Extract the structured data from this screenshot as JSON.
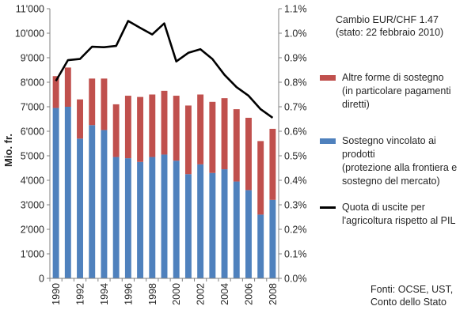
{
  "exchange_rate": {
    "line1": "Cambio    EUR/CHF    1.47",
    "line2": "(stato: 22 febbraio 2010)"
  },
  "legend": {
    "red": "Altre forme di sostegno\n(in particolare pagamenti\ndiretti)",
    "blue": "Sostegno vincolato ai\nprodotti\n(protezione alla frontiera e\nsostegno del mercato)",
    "line": "Quota di uscite per\nl'agricoltura rispetto al PIL"
  },
  "sources": "Fonti: OCSE, UST,\nConto dello Stato",
  "chart_data": {
    "type": "bar",
    "stacked": true,
    "ylabel": "Mio. fr.",
    "ylim": [
      0,
      11000
    ],
    "y_ticks": [
      "0",
      "1'000",
      "2'000",
      "3'000",
      "4'000",
      "5'000",
      "6'000",
      "7'000",
      "8'000",
      "9'000",
      "10'000",
      "11'000"
    ],
    "y2lim": [
      0,
      1.1
    ],
    "y2_ticks": [
      "0.0%",
      "0.1%",
      "0.2%",
      "0.3%",
      "0.4%",
      "0.5%",
      "0.6%",
      "0.7%",
      "0.8%",
      "0.9%",
      "1.0%",
      "1.1%"
    ],
    "categories": [
      "1990",
      "1991",
      "1992",
      "1993",
      "1994",
      "1995",
      "1996",
      "1997",
      "1998",
      "1999",
      "2000",
      "2001",
      "2002",
      "2003",
      "2004",
      "2005",
      "2006",
      "2007",
      "2008"
    ],
    "x_tick_labels": [
      "1990",
      "1992",
      "1994",
      "1996",
      "1998",
      "2000",
      "2002",
      "2004",
      "2006",
      "2008"
    ],
    "series": [
      {
        "color": "#4f81bd",
        "values": [
          6950,
          7000,
          5700,
          6250,
          6050,
          4950,
          4900,
          4750,
          4950,
          5050,
          4800,
          4250,
          4650,
          4300,
          4450,
          3950,
          3600,
          2600,
          3200
        ]
      },
      {
        "color": "#c0504d",
        "values": [
          1300,
          1600,
          1600,
          1900,
          2100,
          2150,
          2550,
          2650,
          2550,
          2600,
          2650,
          2800,
          2850,
          2900,
          2900,
          2950,
          2950,
          3000,
          2900
        ]
      },
      {
        "type": "line",
        "axis": "secondary",
        "color": "#000000",
        "values": [
          0.805,
          0.89,
          0.895,
          0.945,
          0.943,
          0.948,
          1.05,
          1.022,
          0.995,
          1.04,
          0.885,
          0.92,
          0.935,
          0.895,
          0.83,
          0.78,
          0.745,
          0.69,
          0.655
        ]
      }
    ],
    "grid": false,
    "legend_position": "right"
  }
}
